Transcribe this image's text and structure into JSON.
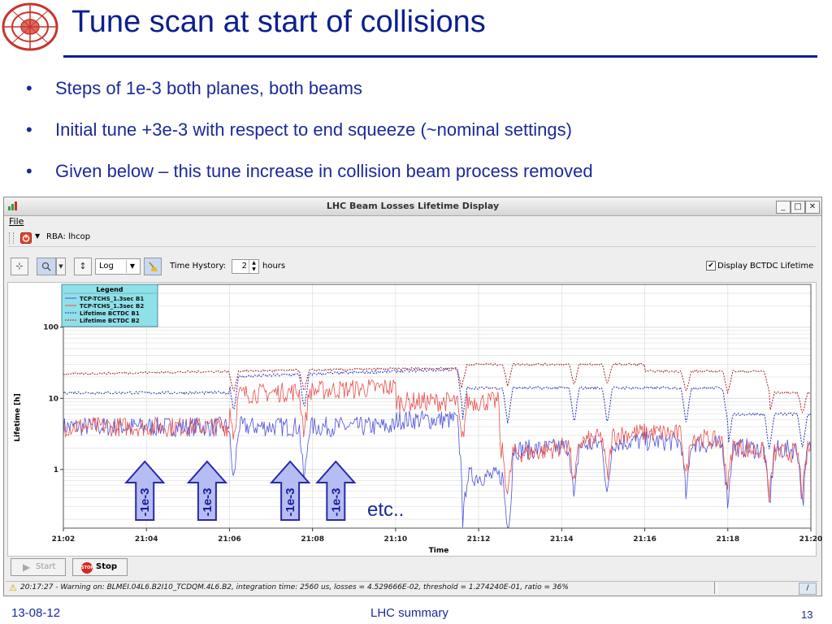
{
  "slide": {
    "title": "Tune scan at start of collisions",
    "bullets": [
      "Steps of 1e-3 both planes, both beams",
      "Initial tune +3e-3 with respect to end squeeze (~nominal settings)",
      "Given below – this tune increase in collision beam process removed"
    ],
    "footer_left": "13-08-12",
    "footer_center": "LHC summary",
    "footer_right": "13",
    "annotation_etc": "etc..",
    "arrow_label": "-1e-3"
  },
  "window": {
    "title": "LHC Beam Losses Lifetime Display",
    "menu_file": "File",
    "rba_label": "RBA: lhcop",
    "scale_select": "Log",
    "time_history_label": "Time Hystory:",
    "time_history_value": "2",
    "time_history_unit": "hours",
    "display_bctdc_label": "Display BCTDC Lifetime",
    "display_bctdc_checked": true,
    "start_label": "Start",
    "stop_label": "Stop",
    "stop_icon_text": "STOP",
    "status_message": "20:17:27 - Warning on: BLMEI.04L6.B2I10_TCDQM.4L6.B2, integration time: 2560 us, losses = 4.529666E-02, threshold = 1.274240E-01, ratio = 36%",
    "min_label": "_",
    "max_label": "□",
    "close_label": "✕"
  },
  "chart_data": {
    "type": "line",
    "xlabel": "Time",
    "ylabel": "Lifetime [h]",
    "y_scale": "log",
    "ylim": [
      0.15,
      400
    ],
    "xlim": [
      "21:02",
      "21:20"
    ],
    "x_ticks": [
      "21:02",
      "21:04",
      "21:06",
      "21:08",
      "21:10",
      "21:12",
      "21:14",
      "21:16",
      "21:18",
      "21:20"
    ],
    "y_ticks": [
      "1",
      "10",
      "100"
    ],
    "legend_title": "Legend",
    "legend_placement": "top-left",
    "series": [
      {
        "name": "TCP-TCHS_1.3sec B1",
        "color": "#4c52d8",
        "style": "solid"
      },
      {
        "name": "TCP-TCHS_1.3sec B2",
        "color": "#e8504c",
        "style": "solid"
      },
      {
        "name": "Lifetime BCTDC B1",
        "color": "#2230b0",
        "style": "dashed"
      },
      {
        "name": "Lifetime BCTDC B2",
        "color": "#a82020",
        "style": "dashed"
      }
    ],
    "arrows_at": [
      "21:04",
      "21:05.5",
      "21:07.5",
      "21:08.6"
    ]
  }
}
